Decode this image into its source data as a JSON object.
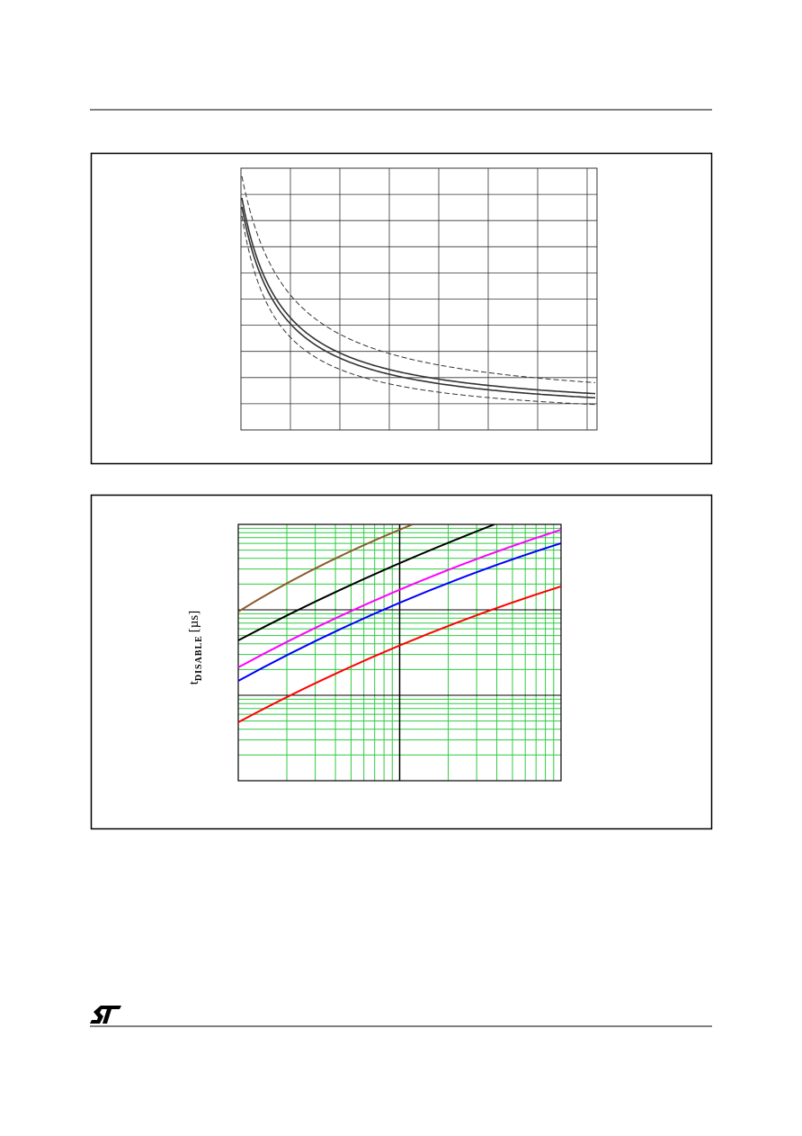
{
  "figure2": {
    "y_axis_label": {
      "symbol": "t",
      "subscript": "DISABLE",
      "unit": "[µs]"
    }
  }
}
